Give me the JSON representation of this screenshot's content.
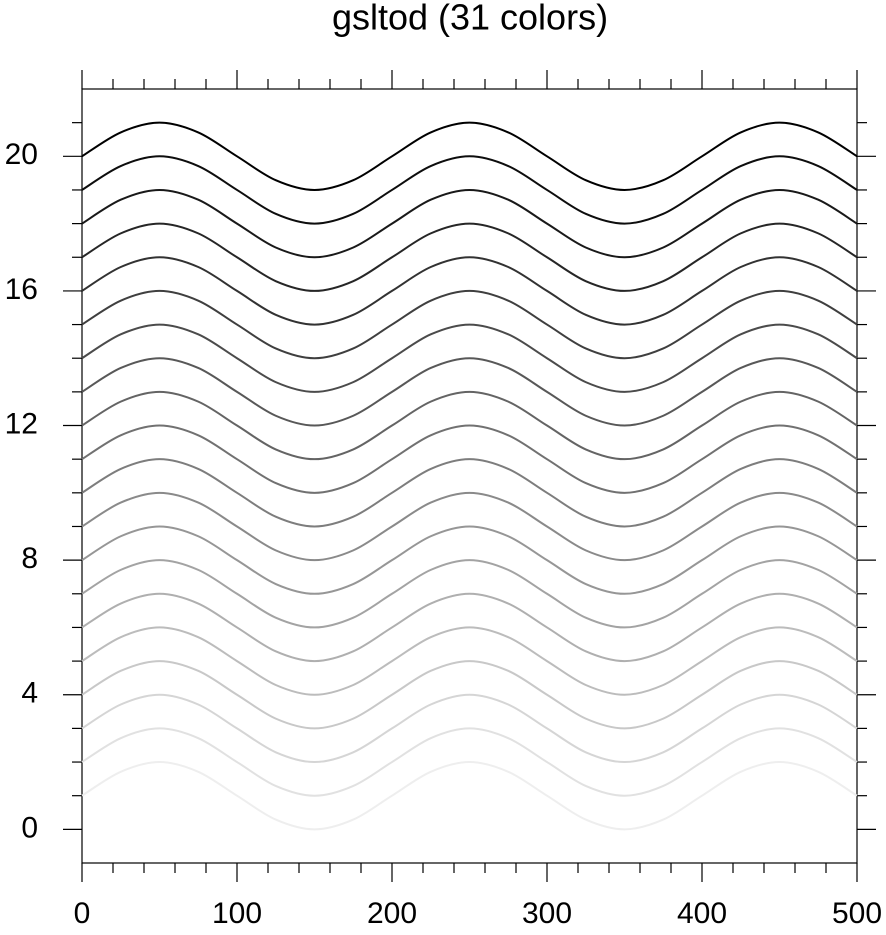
{
  "chart_data": {
    "type": "line",
    "title": "gsltod (31 colors)",
    "x": [
      0,
      25,
      50,
      75,
      100,
      125,
      150,
      175,
      200,
      225,
      250,
      275,
      300,
      325,
      350,
      375,
      400,
      425,
      450,
      475,
      500
    ],
    "xlim": [
      0,
      500
    ],
    "xticks": [
      0,
      100,
      200,
      300,
      400,
      500
    ],
    "xminorticks": [
      20,
      40,
      60,
      80,
      120,
      140,
      160,
      180,
      220,
      240,
      260,
      280,
      320,
      340,
      360,
      380,
      420,
      440,
      460,
      480
    ],
    "ylim": [
      -1,
      22
    ],
    "yticks": [
      0,
      4,
      8,
      12,
      16,
      20
    ],
    "yminorticks": [
      1,
      2,
      3,
      5,
      6,
      7,
      9,
      10,
      11,
      13,
      14,
      15,
      17,
      18,
      19,
      21
    ],
    "series": [
      {
        "color": "#000000",
        "values": [
          20,
          20.71,
          21,
          20.71,
          20,
          19.29,
          19,
          19.29,
          20,
          20.71,
          21,
          20.71,
          20,
          19.29,
          19,
          19.29,
          20,
          20.71,
          21,
          20.71,
          20
        ]
      },
      {
        "color": "#0d0d0d",
        "values": [
          19,
          19.71,
          20,
          19.71,
          19,
          18.29,
          18,
          18.29,
          19,
          19.71,
          20,
          19.71,
          19,
          18.29,
          18,
          18.29,
          19,
          19.71,
          20,
          19.71,
          19
        ]
      },
      {
        "color": "#191919",
        "values": [
          18,
          18.71,
          19,
          18.71,
          18,
          17.29,
          17,
          17.29,
          18,
          18.71,
          19,
          18.71,
          18,
          17.29,
          17,
          17.29,
          18,
          18.71,
          19,
          18.71,
          18
        ]
      },
      {
        "color": "#262626",
        "values": [
          17,
          17.71,
          18,
          17.71,
          17,
          16.29,
          16,
          16.29,
          17,
          17.71,
          18,
          17.71,
          17,
          16.29,
          16,
          16.29,
          17,
          17.71,
          18,
          17.71,
          17
        ]
      },
      {
        "color": "#323232",
        "values": [
          16,
          16.71,
          17,
          16.71,
          16,
          15.29,
          15,
          15.29,
          16,
          16.71,
          17,
          16.71,
          16,
          15.29,
          15,
          15.29,
          16,
          16.71,
          17,
          16.71,
          16
        ]
      },
      {
        "color": "#3f3f3f",
        "values": [
          15,
          15.71,
          16,
          15.71,
          15,
          14.29,
          14,
          14.29,
          15,
          15.71,
          16,
          15.71,
          15,
          14.29,
          14,
          14.29,
          15,
          15.71,
          16,
          15.71,
          15
        ]
      },
      {
        "color": "#4b4b4b",
        "values": [
          14,
          14.71,
          15,
          14.71,
          14,
          13.29,
          13,
          13.29,
          14,
          14.71,
          15,
          14.71,
          14,
          13.29,
          13,
          13.29,
          14,
          14.71,
          15,
          14.71,
          14
        ]
      },
      {
        "color": "#585858",
        "values": [
          13,
          13.71,
          14,
          13.71,
          13,
          12.29,
          12,
          12.29,
          13,
          13.71,
          14,
          13.71,
          13,
          12.29,
          12,
          12.29,
          13,
          13.71,
          14,
          13.71,
          13
        ]
      },
      {
        "color": "#646464",
        "values": [
          12,
          12.71,
          13,
          12.71,
          12,
          11.29,
          11,
          11.29,
          12,
          12.71,
          13,
          12.71,
          12,
          11.29,
          11,
          11.29,
          12,
          12.71,
          13,
          12.71,
          12
        ]
      },
      {
        "color": "#717171",
        "values": [
          11,
          11.71,
          12,
          11.71,
          11,
          10.29,
          10,
          10.29,
          11,
          11.71,
          12,
          11.71,
          11,
          10.29,
          10,
          10.29,
          11,
          11.71,
          12,
          11.71,
          11
        ]
      },
      {
        "color": "#7d7d7d",
        "values": [
          10,
          10.71,
          11,
          10.71,
          10,
          9.29,
          9,
          9.29,
          10,
          10.71,
          11,
          10.71,
          10,
          9.29,
          9,
          9.29,
          10,
          10.71,
          11,
          10.71,
          10
        ]
      },
      {
        "color": "#8a8a8a",
        "values": [
          9,
          9.71,
          10,
          9.71,
          9,
          8.29,
          8,
          8.29,
          9,
          9.71,
          10,
          9.71,
          9,
          8.29,
          8,
          8.29,
          9,
          9.71,
          10,
          9.71,
          9
        ]
      },
      {
        "color": "#969696",
        "values": [
          8,
          8.71,
          9,
          8.71,
          8,
          7.29,
          7,
          7.29,
          8,
          8.71,
          9,
          8.71,
          8,
          7.29,
          7,
          7.29,
          8,
          8.71,
          9,
          8.71,
          8
        ]
      },
      {
        "color": "#a3a3a3",
        "values": [
          7,
          7.71,
          8,
          7.71,
          7,
          6.29,
          6,
          6.29,
          7,
          7.71,
          8,
          7.71,
          7,
          6.29,
          6,
          6.29,
          7,
          7.71,
          8,
          7.71,
          7
        ]
      },
      {
        "color": "#afafaf",
        "values": [
          6,
          6.71,
          7,
          6.71,
          6,
          5.29,
          5,
          5.29,
          6,
          6.71,
          7,
          6.71,
          6,
          5.29,
          5,
          5.29,
          6,
          6.71,
          7,
          6.71,
          6
        ]
      },
      {
        "color": "#bcbcbc",
        "values": [
          5,
          5.71,
          6,
          5.71,
          5,
          4.29,
          4,
          4.29,
          5,
          5.71,
          6,
          5.71,
          5,
          4.29,
          4,
          4.29,
          5,
          5.71,
          6,
          5.71,
          5
        ]
      },
      {
        "color": "#c8c8c8",
        "values": [
          4,
          4.71,
          5,
          4.71,
          4,
          3.29,
          3,
          3.29,
          4,
          4.71,
          5,
          4.71,
          4,
          3.29,
          3,
          3.29,
          4,
          4.71,
          5,
          4.71,
          4
        ]
      },
      {
        "color": "#d5d5d5",
        "values": [
          3,
          3.71,
          4,
          3.71,
          3,
          2.29,
          2,
          2.29,
          3,
          3.71,
          4,
          3.71,
          3,
          2.29,
          2,
          2.29,
          3,
          3.71,
          4,
          3.71,
          3
        ]
      },
      {
        "color": "#e1e1e1",
        "values": [
          2,
          2.71,
          3,
          2.71,
          2,
          1.29,
          1,
          1.29,
          2,
          2.71,
          3,
          2.71,
          2,
          1.29,
          1,
          1.29,
          2,
          2.71,
          3,
          2.71,
          2
        ]
      },
      {
        "color": "#eeeeee",
        "values": [
          1,
          1.71,
          2,
          1.71,
          1,
          0.29,
          0,
          0.29,
          1,
          1.71,
          2,
          1.71,
          1,
          0.29,
          0,
          0.29,
          1,
          1.71,
          2,
          1.71,
          1
        ]
      }
    ]
  }
}
